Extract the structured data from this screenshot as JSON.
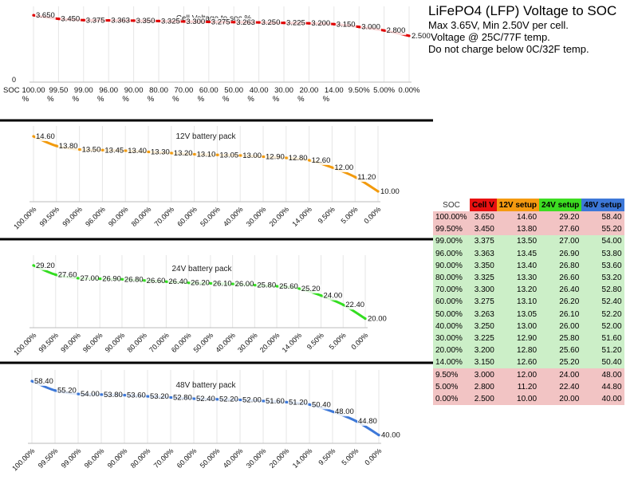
{
  "header": {
    "title": "LiFePO4 (LFP) Voltage to SOC",
    "lines": [
      "Max 3.65V, Min 2.50V per cell.",
      "Voltage @ 25C/77F temp.",
      "Do not charge below 0C/32F temp."
    ]
  },
  "colors": {
    "cell": "#e00000",
    "v12": "#f29a0c",
    "v24": "#33dd20",
    "v48": "#3d78d8",
    "row_red": "#f2c4c4",
    "row_green": "#ccefc8",
    "rule": "#000000"
  },
  "table": {
    "headers": [
      "SOC",
      "Cell V",
      "12V setup",
      "24V setup",
      "48V setup"
    ],
    "header_colors": [
      "#ffffff",
      "#e81010",
      "#f59a10",
      "#3ddd22",
      "#3d78d8"
    ],
    "rows": [
      [
        "100.00%",
        "3.650",
        "14.60",
        "29.20",
        "58.40"
      ],
      [
        "99.50%",
        "3.450",
        "13.80",
        "27.60",
        "55.20"
      ],
      [
        "99.00%",
        "3.375",
        "13.50",
        "27.00",
        "54.00"
      ],
      [
        "96.00%",
        "3.363",
        "13.45",
        "26.90",
        "53.80"
      ],
      [
        "90.00%",
        "3.350",
        "13.40",
        "26.80",
        "53.60"
      ],
      [
        "80.00%",
        "3.325",
        "13.30",
        "26.60",
        "53.20"
      ],
      [
        "70.00%",
        "3.300",
        "13.20",
        "26.40",
        "52.80"
      ],
      [
        "60.00%",
        "3.275",
        "13.10",
        "26.20",
        "52.40"
      ],
      [
        "50.00%",
        "3.263",
        "13.05",
        "26.10",
        "52.20"
      ],
      [
        "40.00%",
        "3.250",
        "13.00",
        "26.00",
        "52.00"
      ],
      [
        "30.00%",
        "3.225",
        "12.90",
        "25.80",
        "51.60"
      ],
      [
        "20.00%",
        "3.200",
        "12.80",
        "25.60",
        "51.20"
      ],
      [
        "14.00%",
        "3.150",
        "12.60",
        "25.20",
        "50.40"
      ],
      [
        "9.50%",
        "3.000",
        "12.00",
        "24.00",
        "48.00"
      ],
      [
        "5.00%",
        "2.800",
        "11.20",
        "22.40",
        "44.80"
      ],
      [
        "0.00%",
        "2.500",
        "10.00",
        "20.00",
        "40.00"
      ]
    ],
    "row_groups": [
      "red",
      "red",
      "green",
      "green",
      "green",
      "green",
      "green",
      "green",
      "green",
      "green",
      "green",
      "green",
      "green",
      "red",
      "red",
      "red"
    ]
  },
  "chart_data": [
    {
      "type": "line",
      "title": "Cell Voltage to soc %",
      "x_axis_name": "SOC",
      "y_axis_tick": "0",
      "categories": [
        "100.00 %",
        "99.50 %",
        "99.00 %",
        "96.00 %",
        "90.00 %",
        "80.00 %",
        "70.00 %",
        "60.00 %",
        "50.00 %",
        "40.00 %",
        "30.00 %",
        "20.00 %",
        "14.00 %",
        "9.50%",
        "5.00%",
        "0.00%"
      ],
      "labels": [
        "3.650",
        "3.450",
        "3.375",
        "3.363",
        "3.350",
        "3.325",
        "3.300",
        "3.275",
        "3.263",
        "3.250",
        "3.225",
        "3.200",
        "3.150",
        "3.000",
        "2.800",
        "2.500"
      ],
      "values": [
        3.65,
        3.45,
        3.375,
        3.363,
        3.35,
        3.325,
        3.3,
        3.275,
        3.263,
        3.25,
        3.225,
        3.2,
        3.15,
        3.0,
        2.8,
        2.5
      ],
      "ylim": [
        0,
        3.7
      ],
      "color": "#e00000"
    },
    {
      "type": "line",
      "title": "12V battery pack",
      "categories": [
        "100.00%",
        "99.50%",
        "99.00%",
        "96.00%",
        "90.00%",
        "80.00%",
        "70.00%",
        "60.00%",
        "50.00%",
        "40.00%",
        "30.00%",
        "20.00%",
        "14.00%",
        "9.50%",
        "5.00%",
        "0.00%"
      ],
      "labels": [
        "14.60",
        "13.80",
        "13.50",
        "13.45",
        "13.40",
        "13.30",
        "13.20",
        "13.10",
        "13.05",
        "13.00",
        "12.90",
        "12.80",
        "12.60",
        "12.00",
        "11.20",
        "10.00"
      ],
      "values": [
        14.6,
        13.8,
        13.5,
        13.45,
        13.4,
        13.3,
        13.2,
        13.1,
        13.05,
        13.0,
        12.9,
        12.8,
        12.6,
        12.0,
        11.2,
        10.0
      ],
      "ylim": [
        9.6,
        14.8
      ],
      "color": "#f29a0c"
    },
    {
      "type": "line",
      "title": "24V battery pack",
      "categories": [
        "100.00%",
        "99.50%",
        "99.00%",
        "96.00%",
        "90.00%",
        "80.00%",
        "70.00%",
        "60.00%",
        "50.00%",
        "40.00%",
        "30.00%",
        "20.00%",
        "14.00%",
        "9.50%",
        "5.00%",
        "0.00%"
      ],
      "labels": [
        "29.20",
        "27.60",
        "27.00",
        "26.90",
        "26.80",
        "26.60",
        "26.40",
        "26.20",
        "26.10",
        "26.00",
        "25.80",
        "25.60",
        "25.20",
        "24.00",
        "22.40",
        "20.00"
      ],
      "values": [
        29.2,
        27.6,
        27.0,
        26.9,
        26.8,
        26.6,
        26.4,
        26.2,
        26.1,
        26.0,
        25.8,
        25.6,
        25.2,
        24.0,
        22.4,
        20.0
      ],
      "ylim": [
        19.4,
        29.6
      ],
      "color": "#33dd20"
    },
    {
      "type": "line",
      "title": "48V battery pack",
      "categories": [
        "100.00%",
        "99.50%",
        "99.00%",
        "96.00%",
        "90.00%",
        "80.00%",
        "70.00%",
        "60.00%",
        "50.00%",
        "40.00%",
        "30.00%",
        "20.00%",
        "14.00%",
        "9.50%",
        "5.00%",
        "0.00%"
      ],
      "labels": [
        "58.40",
        "55.20",
        "54.00",
        "53.80",
        "53.60",
        "53.20",
        "52.80",
        "52.40",
        "52.20",
        "52.00",
        "51.60",
        "51.20",
        "50.40",
        "48.00",
        "44.80",
        "40.00"
      ],
      "values": [
        58.4,
        55.2,
        54.0,
        53.8,
        53.6,
        53.2,
        52.8,
        52.4,
        52.2,
        52.0,
        51.6,
        51.2,
        50.4,
        48.0,
        44.8,
        40.0
      ],
      "ylim": [
        38.8,
        59.2
      ],
      "color": "#3d78d8"
    }
  ]
}
